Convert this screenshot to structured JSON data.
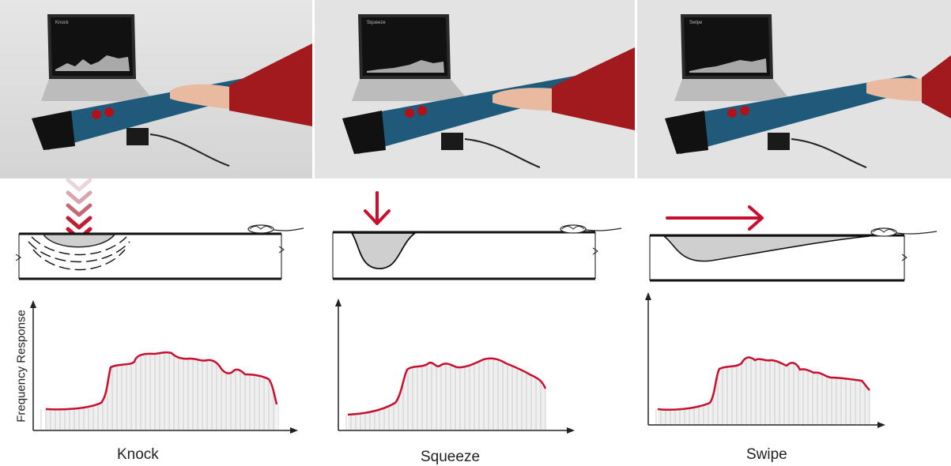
{
  "figure": {
    "y_axis_title": "Frequency Response",
    "accent_color": "#c8102e",
    "panels": [
      {
        "id": "knock",
        "label": "Knock",
        "arrow": "stacked-chevrons-down",
        "screen_title": "Knock"
      },
      {
        "id": "squeeze",
        "label": "Squeeze",
        "arrow": "single-arrow-down",
        "screen_title": "Squeeze"
      },
      {
        "id": "swipe",
        "label": "Swipe",
        "arrow": "arrow-right",
        "screen_title": "Swipe"
      }
    ]
  }
}
